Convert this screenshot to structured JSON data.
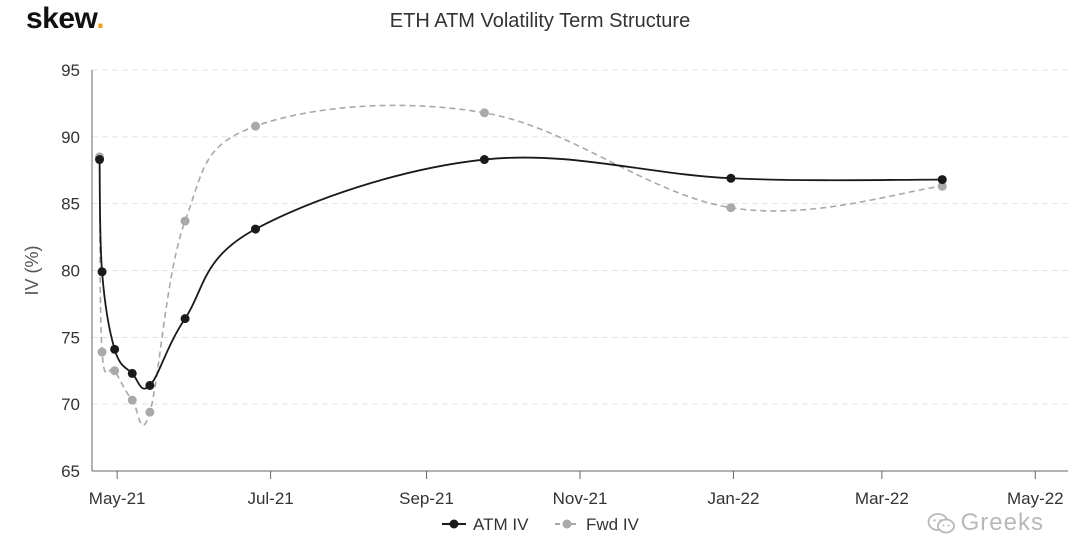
{
  "brand": {
    "name": "skew",
    "dot": "."
  },
  "watermark": {
    "icon": "wechat-icon",
    "text": "Greeks"
  },
  "chart_data": {
    "type": "line",
    "title": "ETH ATM Volatility Term Structure",
    "xlabel": "",
    "ylabel": "IV (%)",
    "ylim": [
      65,
      95
    ],
    "yticks": [
      65,
      70,
      75,
      80,
      85,
      90,
      95
    ],
    "xlim": [
      "2021-04-21",
      "2022-05-14"
    ],
    "xticks": [
      {
        "date": "2021-05-01",
        "label": "May-21"
      },
      {
        "date": "2021-07-01",
        "label": "Jul-21"
      },
      {
        "date": "2021-09-01",
        "label": "Sep-21"
      },
      {
        "date": "2021-11-01",
        "label": "Nov-21"
      },
      {
        "date": "2022-01-01",
        "label": "Jan-22"
      },
      {
        "date": "2022-03-01",
        "label": "Mar-22"
      },
      {
        "date": "2022-05-01",
        "label": "May-22"
      }
    ],
    "grid": "horizontal-dashed",
    "legend": "bottom-center",
    "series": [
      {
        "name": "ATM IV",
        "color": "#1a1a1a",
        "dashed": false,
        "points": [
          {
            "x": "2021-04-24",
            "y": 88.3
          },
          {
            "x": "2021-04-25",
            "y": 79.9
          },
          {
            "x": "2021-04-30",
            "y": 74.1
          },
          {
            "x": "2021-05-07",
            "y": 72.3
          },
          {
            "x": "2021-05-14",
            "y": 71.4
          },
          {
            "x": "2021-05-28",
            "y": 76.4
          },
          {
            "x": "2021-06-25",
            "y": 83.1
          },
          {
            "x": "2021-09-24",
            "y": 88.3
          },
          {
            "x": "2021-12-31",
            "y": 86.9
          },
          {
            "x": "2022-03-25",
            "y": 86.8
          }
        ]
      },
      {
        "name": "Fwd IV",
        "color": "#a9a9a9",
        "dashed": true,
        "points": [
          {
            "x": "2021-04-24",
            "y": 88.5
          },
          {
            "x": "2021-04-25",
            "y": 73.9
          },
          {
            "x": "2021-04-30",
            "y": 72.5
          },
          {
            "x": "2021-05-07",
            "y": 70.3
          },
          {
            "x": "2021-05-14",
            "y": 69.4
          },
          {
            "x": "2021-05-28",
            "y": 83.7
          },
          {
            "x": "2021-06-25",
            "y": 90.8
          },
          {
            "x": "2021-09-24",
            "y": 91.8
          },
          {
            "x": "2021-12-31",
            "y": 84.7
          },
          {
            "x": "2022-03-25",
            "y": 86.3
          }
        ]
      }
    ]
  }
}
